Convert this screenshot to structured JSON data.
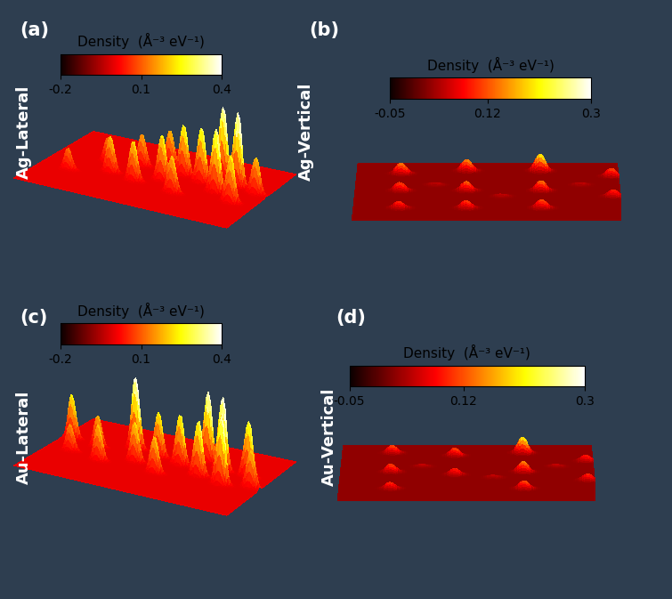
{
  "chart_data": [
    {
      "type": "surface",
      "panel": "(a)",
      "title": "Ag-Lateral",
      "tick_labels": false,
      "colorbar_label": "Density  (Å⁻³ eV⁻¹)",
      "colorbar_range": [
        -0.2,
        0.4
      ],
      "colorbar_ticks": [
        -0.2,
        0.1,
        0.4
      ],
      "baseline": 0.0,
      "peaks": [
        [
          0.15,
          0.3,
          0.12
        ],
        [
          0.25,
          0.55,
          0.14
        ],
        [
          0.32,
          0.4,
          0.2
        ],
        [
          0.4,
          0.6,
          0.18
        ],
        [
          0.45,
          0.35,
          0.22
        ],
        [
          0.5,
          0.7,
          0.2
        ],
        [
          0.55,
          0.45,
          0.25
        ],
        [
          0.6,
          0.6,
          0.28
        ],
        [
          0.65,
          0.3,
          0.2
        ],
        [
          0.7,
          0.55,
          0.3
        ],
        [
          0.75,
          0.7,
          0.38
        ],
        [
          0.8,
          0.45,
          0.34
        ],
        [
          0.85,
          0.6,
          0.4
        ],
        [
          0.9,
          0.35,
          0.25
        ],
        [
          0.95,
          0.55,
          0.2
        ]
      ]
    },
    {
      "type": "surface",
      "panel": "(b)",
      "title": "Ag-Vertical",
      "tick_labels": false,
      "colorbar_label": "Density  (Å⁻³ eV⁻¹)",
      "colorbar_range": [
        -0.05,
        0.3
      ],
      "colorbar_ticks": [
        -0.05,
        0.12,
        0.3
      ],
      "baseline": 0.02,
      "peaks": [
        [
          0.17,
          0.8,
          0.15
        ],
        [
          0.17,
          0.5,
          0.12
        ],
        [
          0.17,
          0.2,
          0.1
        ],
        [
          0.42,
          0.85,
          0.16
        ],
        [
          0.42,
          0.5,
          0.13
        ],
        [
          0.42,
          0.2,
          0.11
        ],
        [
          0.7,
          0.85,
          0.22
        ],
        [
          0.7,
          0.5,
          0.14
        ],
        [
          0.7,
          0.2,
          0.12
        ],
        [
          0.97,
          0.75,
          0.12
        ],
        [
          0.97,
          0.4,
          0.1
        ],
        [
          0.3,
          0.6,
          0.05
        ],
        [
          0.55,
          0.4,
          0.05
        ],
        [
          0.85,
          0.6,
          0.05
        ]
      ]
    },
    {
      "type": "surface",
      "panel": "(c)",
      "title": "Au-Lateral",
      "tick_labels": false,
      "colorbar_label": "Density  (Å⁻³ eV⁻¹)",
      "colorbar_range": [
        -0.2,
        0.4
      ],
      "colorbar_ticks": [
        -0.2,
        0.1,
        0.4
      ],
      "baseline": 0.0,
      "peaks": [
        [
          0.05,
          0.6,
          0.25
        ],
        [
          0.12,
          0.4,
          0.15
        ],
        [
          0.2,
          0.55,
          0.18
        ],
        [
          0.28,
          0.35,
          0.2
        ],
        [
          0.35,
          0.65,
          0.4
        ],
        [
          0.42,
          0.45,
          0.22
        ],
        [
          0.48,
          0.6,
          0.25
        ],
        [
          0.55,
          0.35,
          0.2
        ],
        [
          0.6,
          0.55,
          0.28
        ],
        [
          0.68,
          0.7,
          0.38
        ],
        [
          0.72,
          0.45,
          0.3
        ],
        [
          0.78,
          0.6,
          0.4
        ],
        [
          0.84,
          0.4,
          0.36
        ],
        [
          0.9,
          0.6,
          0.3
        ],
        [
          0.96,
          0.45,
          0.2
        ]
      ]
    },
    {
      "type": "surface",
      "panel": "(d)",
      "title": "Au-Vertical",
      "tick_labels": false,
      "colorbar_label": "Density  (Å⁻³ eV⁻¹)",
      "colorbar_range": [
        -0.05,
        0.3
      ],
      "colorbar_ticks": [
        -0.05,
        0.12,
        0.3
      ],
      "baseline": 0.02,
      "peaks": [
        [
          0.2,
          0.85,
          0.12
        ],
        [
          0.2,
          0.5,
          0.12
        ],
        [
          0.2,
          0.2,
          0.1
        ],
        [
          0.45,
          0.8,
          0.12
        ],
        [
          0.45,
          0.45,
          0.1
        ],
        [
          0.72,
          0.85,
          0.22
        ],
        [
          0.72,
          0.5,
          0.15
        ],
        [
          0.72,
          0.2,
          0.12
        ],
        [
          0.97,
          0.7,
          0.1
        ],
        [
          0.97,
          0.35,
          0.1
        ],
        [
          0.32,
          0.6,
          0.05
        ],
        [
          0.6,
          0.4,
          0.05
        ],
        [
          0.85,
          0.6,
          0.05
        ]
      ]
    }
  ]
}
